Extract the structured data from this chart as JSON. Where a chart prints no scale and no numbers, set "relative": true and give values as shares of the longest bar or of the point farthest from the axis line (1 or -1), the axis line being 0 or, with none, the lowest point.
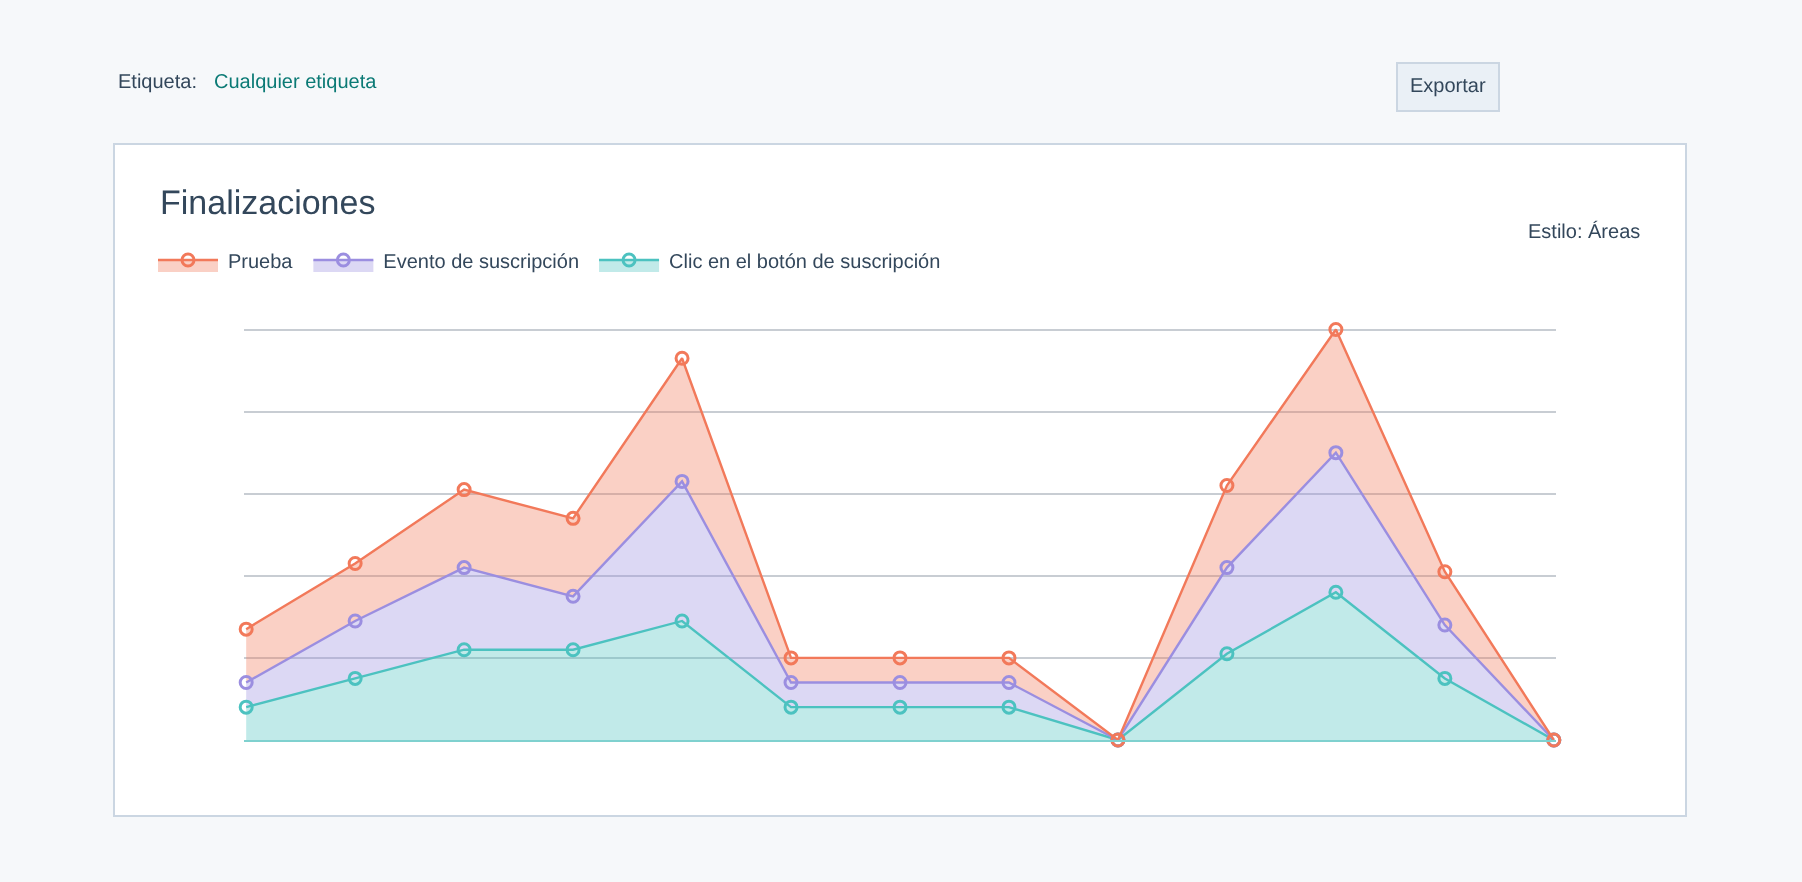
{
  "chart_data": {
    "type": "area",
    "title": "Finalizaciones",
    "relative": true,
    "stacked": true,
    "grid": "y",
    "legend": "top left",
    "marker": "circle",
    "categories": [
      null,
      null,
      null,
      null,
      null,
      null,
      null,
      null,
      null,
      null,
      null,
      null,
      null
    ],
    "series": [
      {
        "name": "Clic en el botón de suscripción",
        "color": "#4cc2c0",
        "values": [
          0.08,
          0.15,
          0.22,
          0.22,
          0.29,
          0.08,
          0.08,
          0.08,
          0,
          0.21,
          0.36,
          0.15,
          0
        ]
      },
      {
        "name": "Evento de suscripción",
        "color": "#9b8ee0",
        "values": [
          0.06,
          0.14,
          0.2,
          0.13,
          0.34,
          0.06,
          0.06,
          0.06,
          0,
          0.21,
          0.34,
          0.13,
          0
        ]
      },
      {
        "name": "Prueba",
        "color": "#f2795a",
        "values": [
          0.13,
          0.14,
          0.19,
          0.19,
          0.3,
          0.06,
          0.06,
          0.06,
          0,
          0.2,
          0.3,
          0.13,
          0
        ]
      }
    ],
    "annotations": [
      "Etiqueta:",
      "Cualquier etiqueta",
      "Exportar",
      "Estilo: Áreas"
    ]
  }
}
